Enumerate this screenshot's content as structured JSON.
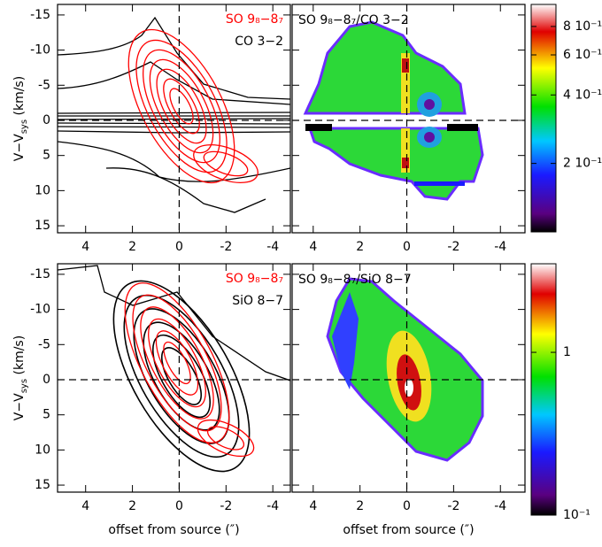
{
  "chart_data": [
    {
      "type": "contour",
      "series": [
        {
          "name": "SO 9₈−8₇",
          "color": "#ff0000"
        },
        {
          "name": "CO 3−2",
          "color": "#000000"
        }
      ],
      "xlim": [
        5.2,
        -4.75
      ],
      "xticks": [
        4,
        2,
        0,
        -2,
        -4
      ],
      "ylim": [
        -16.5,
        16
      ],
      "yticks": [
        -15,
        -10,
        -5,
        0,
        5,
        10,
        15
      ],
      "ylabel": [
        "V−V",
        "sys",
        " (km/s)"
      ]
    },
    {
      "type": "ratio_map",
      "label": "SO 9₈−8₇/CO 3−2",
      "xlim": [
        4.9,
        -5.05
      ],
      "xticks": [
        4,
        2,
        0,
        -2,
        -4
      ],
      "ylim": [
        -16.5,
        16
      ],
      "colorbar": {
        "scale": "log",
        "clim": [
          0.1,
          1
        ],
        "ticks": [
          {
            "value": 0.8,
            "label": "8 10⁻¹"
          },
          {
            "value": 0.6,
            "label": "6 10⁻¹"
          },
          {
            "value": 0.4,
            "label": "4 10⁻¹"
          },
          {
            "value": 0.2,
            "label": "2 10⁻¹"
          }
        ]
      }
    },
    {
      "type": "contour",
      "series": [
        {
          "name": "SO 9₈−8₇",
          "color": "#ff0000"
        },
        {
          "name": "SiO 8−7",
          "color": "#000000"
        }
      ],
      "xlim": [
        5.2,
        -4.75
      ],
      "xticks": [
        4,
        2,
        0,
        -2,
        -4
      ],
      "ylim": [
        -16.5,
        16
      ],
      "yticks": [
        -15,
        -10,
        -5,
        0,
        5,
        10,
        15
      ],
      "ylabel": [
        "V−V",
        "sys",
        " (km/s)"
      ],
      "xlabel": "offset from source (″)"
    },
    {
      "type": "ratio_map",
      "label": "SO 9₈−8₇/SiO 8−7",
      "xlim": [
        4.9,
        -5.05
      ],
      "xticks": [
        4,
        2,
        0,
        -2,
        -4
      ],
      "ylim": [
        -16.5,
        16
      ],
      "xlabel": "offset from source (″)",
      "colorbar": {
        "scale": "log",
        "clim": [
          0.1,
          3.5
        ],
        "ticks": [
          1,
          {
            "value": 0.1,
            "label": "10⁻¹"
          }
        ]
      }
    }
  ]
}
